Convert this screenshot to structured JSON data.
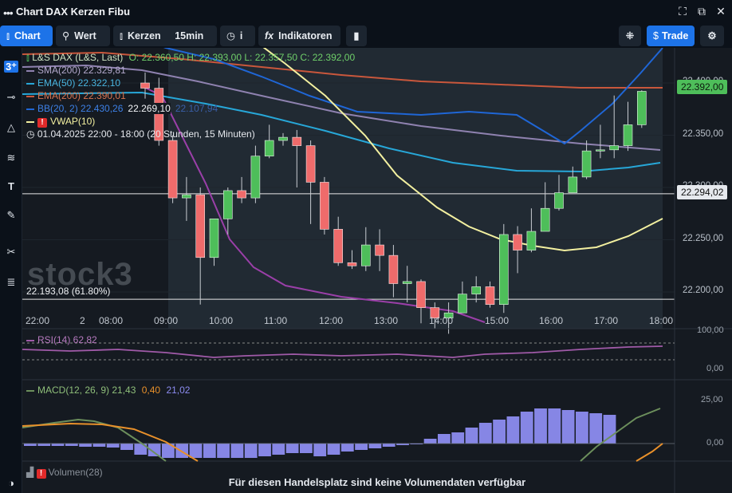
{
  "window": {
    "title": "Chart DAX Kerzen Fibu"
  },
  "toolbar": {
    "chart": "Chart",
    "wert": "Wert",
    "kerzen": "Kerzen",
    "interval": "15min",
    "info": "i",
    "indikatoren": "Indikatoren",
    "trade": "Trade"
  },
  "legend": {
    "main": "L&S DAX (L&S, Last)",
    "ohlc": "O: 22.360,50  H: 22.393,00  L: 22.357,50  C: 22.392,00",
    "sma": "SMA(200)  22.329,81",
    "ema50": "EMA(50)  22.322,10",
    "ema200": "EMA(200)  22.390,01",
    "bb": "BB(20, 2)  22.430,26",
    "bb_mid": "22.269,10",
    "bb_low": "22.107,94",
    "vwap": "VWAP(10)",
    "range": "01.04.2025 22:00 - 18:00   (20 Stunden, 15 Minuten)"
  },
  "fib": {
    "label": "22.193,08 (61.80%)",
    "price": 22193.08
  },
  "watermark": "stock3",
  "price_axis": {
    "ticks": [
      22400,
      22350,
      22300,
      22250,
      22200
    ],
    "tick_labels": [
      "22.400,00",
      "22.350,00",
      "22.300,00",
      "22.250,00",
      "22.200,00"
    ],
    "last": "22.392,00",
    "crosshair": "22.294,02"
  },
  "time_axis": {
    "labels": [
      "22:00",
      "2",
      "08:00",
      "09:00",
      "10:00",
      "11:00",
      "12:00",
      "13:00",
      "14:00",
      "15:00",
      "16:00",
      "17:00",
      "18:00"
    ]
  },
  "rsi": {
    "label": "RSI(14)  62,82",
    "tick_labels": [
      "100,00",
      "0,00"
    ]
  },
  "macd": {
    "label": "MACD(12, 26, 9)",
    "v1": "21,43",
    "v2": "0,40",
    "v3": "21,02",
    "tick_labels": [
      "25,00",
      "0,00"
    ]
  },
  "volume": {
    "label": "Volumen(28)",
    "message": "Für diesen Handelsplatz sind keine Volumendaten verfügbar"
  },
  "colors": {
    "up": "#4ebe5a",
    "down": "#ef6b6b",
    "sma": "#8f82b0",
    "ema50": "#27a7d8",
    "ema200": "#c9573c",
    "bb": "#1f66d6",
    "vwap": "#f3f0a0",
    "rsi": "#a05aa8",
    "macd_hist": "#8c8cf0",
    "macd_line": "#6c8f5c",
    "macd_signal": "#e8902a"
  },
  "chart_data": {
    "type": "candlestick",
    "x": [
      "09:00",
      "09:15",
      "09:30",
      "09:45",
      "10:00",
      "10:15",
      "10:30",
      "10:45",
      "11:00",
      "11:15",
      "11:30",
      "11:45",
      "12:00",
      "12:15",
      "12:30",
      "12:45",
      "13:00",
      "13:15",
      "13:30",
      "13:45",
      "14:00",
      "14:15",
      "14:30",
      "14:45",
      "15:00",
      "15:15",
      "15:30",
      "15:45",
      "16:00",
      "16:15",
      "16:30",
      "16:45",
      "17:00",
      "17:15",
      "17:30",
      "17:45",
      "18:00"
    ],
    "open": [
      22400,
      22395,
      22345,
      22290,
      22293,
      22233,
      22270,
      22297,
      22290,
      22330,
      22345,
      22348,
      22340,
      22305,
      22260,
      22228,
      22225,
      22245,
      22235,
      22208,
      22210,
      22185,
      22175,
      22180,
      22198,
      22205,
      22188,
      22255,
      22240,
      22258,
      22280,
      22295,
      22310,
      22335,
      22336,
      22340,
      22360
    ],
    "high": [
      22410,
      22405,
      22350,
      22310,
      22300,
      22240,
      22300,
      22310,
      22340,
      22360,
      22352,
      22355,
      22345,
      22310,
      22272,
      22240,
      22262,
      22260,
      22245,
      22225,
      22212,
      22190,
      22190,
      22210,
      22215,
      22210,
      22265,
      22263,
      22280,
      22305,
      22312,
      22320,
      22345,
      22360,
      22388,
      22382,
      22393
    ],
    "low": [
      22385,
      22340,
      22285,
      22268,
      22188,
      22225,
      22255,
      22285,
      22285,
      22328,
      22340,
      22300,
      22265,
      22255,
      22225,
      22222,
      22220,
      22220,
      22195,
      22190,
      22170,
      22165,
      22160,
      22180,
      22190,
      22185,
      22180,
      22218,
      22238,
      22258,
      22278,
      22295,
      22308,
      22328,
      22328,
      22335,
      22357
    ]
  }
}
